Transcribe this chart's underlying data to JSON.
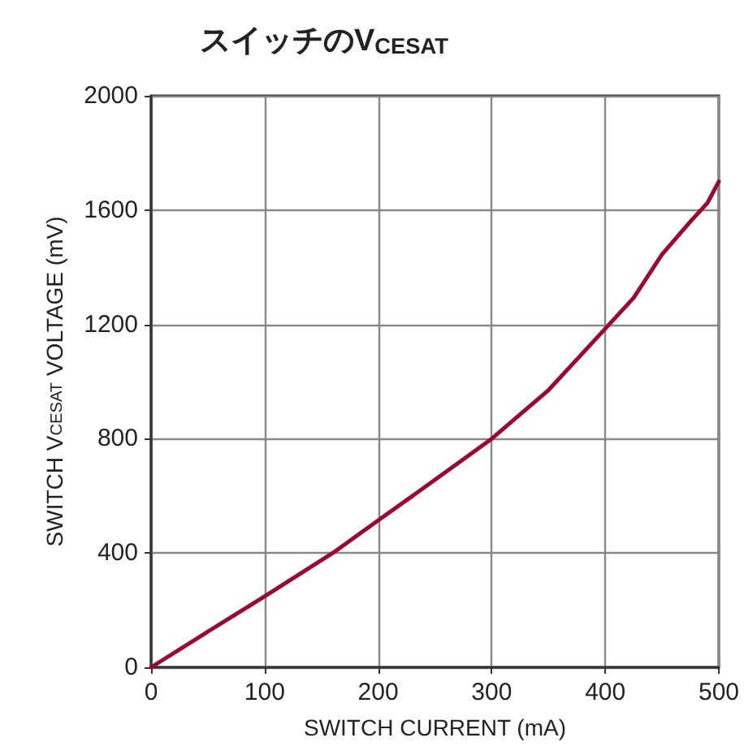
{
  "chart_data": {
    "type": "line",
    "title": "スイッチのV$_{CESAT}$",
    "xlabel": "SWITCH CURRENT (mA)",
    "ylabel": "SWITCH V$_{CESAT}$ VOLTAGE (mV)",
    "x": [
      0,
      50,
      100,
      160,
      200,
      250,
      300,
      350,
      400,
      425,
      450,
      475,
      490,
      500
    ],
    "series": [
      {
        "color": "#9b0a2e",
        "values": [
          0,
          125,
          248,
          400,
          514,
          656,
          800,
          970,
          1185,
          1293,
          1445,
          1560,
          1625,
          1700
        ]
      }
    ],
    "xlim": [
      0,
      500
    ],
    "xticks": [
      0,
      100,
      200,
      300,
      400,
      500
    ],
    "ylim": [
      0,
      2000
    ],
    "yticks": [
      0,
      400,
      800,
      1200,
      1600,
      2000
    ],
    "grid": true,
    "marker": "none",
    "line_style": "solid"
  }
}
